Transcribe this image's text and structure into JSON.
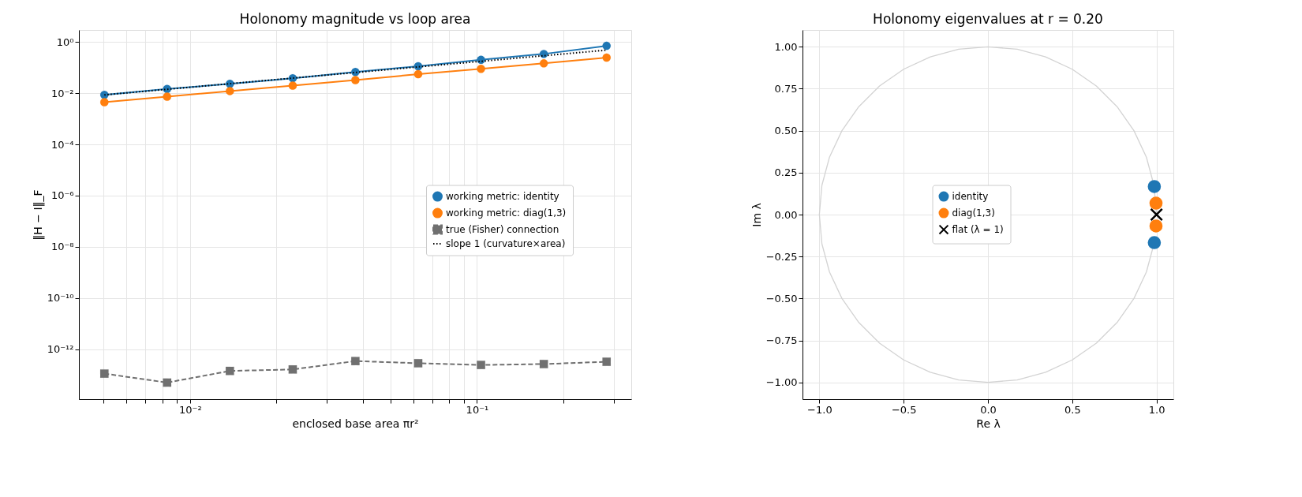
{
  "chart_data": [
    {
      "type": "line",
      "title": "Holonomy magnitude vs loop area",
      "xlabel": "enclosed base area  πr²",
      "ylabel": "‖H − I‖_F",
      "log": "xy",
      "grid": true,
      "legend": "right",
      "x": [
        0.00503,
        0.00832,
        0.01377,
        0.0228,
        0.0377,
        0.0624,
        0.1033,
        0.171,
        0.283
      ],
      "xlim": [
        0.0041,
        0.345
      ],
      "xticks": [
        {
          "value": 0.005,
          "label": null
        },
        {
          "value": 0.006,
          "label": null
        },
        {
          "value": 0.007,
          "label": null
        },
        {
          "value": 0.008,
          "label": null
        },
        {
          "value": 0.009,
          "label": null
        },
        {
          "value": 0.01,
          "label": "10⁻²"
        },
        {
          "value": 0.02,
          "label": null
        },
        {
          "value": 0.03,
          "label": null
        },
        {
          "value": 0.04,
          "label": null
        },
        {
          "value": 0.05,
          "label": null
        },
        {
          "value": 0.06,
          "label": null
        },
        {
          "value": 0.07,
          "label": null
        },
        {
          "value": 0.08,
          "label": null
        },
        {
          "value": 0.09,
          "label": null
        },
        {
          "value": 0.1,
          "label": "10⁻¹"
        },
        {
          "value": 0.2,
          "label": null
        },
        {
          "value": 0.3,
          "label": null
        }
      ],
      "ylim": [
        1.1e-14,
        3
      ],
      "yticks": [
        {
          "value": 1,
          "label": "10⁰"
        },
        {
          "value": 0.01,
          "label": "10⁻²"
        },
        {
          "value": 0.0001,
          "label": "10⁻⁴"
        },
        {
          "value": 1e-06,
          "label": "10⁻⁶"
        },
        {
          "value": 1e-08,
          "label": "10⁻⁸"
        },
        {
          "value": 1e-10,
          "label": "10⁻¹⁰"
        },
        {
          "value": 1e-12,
          "label": "10⁻¹²"
        }
      ],
      "series": [
        {
          "name": "working metric: identity",
          "color": "#1f77b4",
          "marker": "circle",
          "line_style": "solid",
          "values": [
            0.0087,
            0.0148,
            0.0235,
            0.039,
            0.068,
            0.115,
            0.204,
            0.347,
            0.72
          ]
        },
        {
          "name": "working metric: diag(1,3)",
          "color": "#ff7f0e",
          "marker": "circle",
          "line_style": "solid",
          "values": [
            0.0045,
            0.0074,
            0.0123,
            0.02,
            0.033,
            0.056,
            0.091,
            0.148,
            0.25
          ]
        },
        {
          "name": "true (Fisher) connection",
          "color": "#707070",
          "marker": "square",
          "line_style": "dashed",
          "values": [
            1.1e-13,
            4.9e-14,
            1.4e-13,
            1.6e-13,
            3.4e-13,
            2.8e-13,
            2.4e-13,
            2.6e-13,
            3.2e-13
          ]
        },
        {
          "name": "slope 1 (curvature×area)",
          "color": "#000000",
          "marker": "none",
          "line_style": "dotted",
          "x": [
            0.00503,
            0.283
          ],
          "values": [
            0.0087,
            0.49
          ]
        }
      ]
    },
    {
      "type": "scatter",
      "title": "Holonomy eigenvalues at r = 0.20",
      "xlabel": "Re λ",
      "ylabel": "Im λ",
      "grid": true,
      "legend": "center",
      "xlim": [
        -1.1,
        1.1
      ],
      "xticks": [
        {
          "value": -1,
          "label": "−1.0"
        },
        {
          "value": -0.5,
          "label": "−0.5"
        },
        {
          "value": 0,
          "label": "0.0"
        },
        {
          "value": 0.5,
          "label": "0.5"
        },
        {
          "value": 1,
          "label": "1.0"
        }
      ],
      "ylim": [
        -1.1,
        1.1
      ],
      "yticks": [
        {
          "value": -1,
          "label": "−1.00"
        },
        {
          "value": -0.75,
          "label": "−0.75"
        },
        {
          "value": -0.5,
          "label": "−0.50"
        },
        {
          "value": -0.25,
          "label": "−0.25"
        },
        {
          "value": 0,
          "label": "0.00"
        },
        {
          "value": 0.25,
          "label": "0.25"
        },
        {
          "value": 0.5,
          "label": "0.50"
        },
        {
          "value": 0.75,
          "label": "0.75"
        },
        {
          "value": 1,
          "label": "1.00"
        }
      ],
      "series": [
        {
          "type": "line",
          "color": "#d3d3d3",
          "marker": "none",
          "line_style": "solid",
          "x": [
            1.0,
            0.985,
            0.94,
            0.866,
            0.766,
            0.643,
            0.5,
            0.342,
            0.174,
            0.0,
            -0.174,
            -0.342,
            -0.5,
            -0.643,
            -0.766,
            -0.866,
            -0.94,
            -0.985,
            -1.0,
            -0.985,
            -0.94,
            -0.866,
            -0.766,
            -0.643,
            -0.5,
            -0.342,
            -0.174,
            0.0,
            0.174,
            0.342,
            0.5,
            0.643,
            0.766,
            0.866,
            0.94,
            0.985
          ],
          "values": [
            0.0,
            0.174,
            0.342,
            0.5,
            0.643,
            0.766,
            0.866,
            0.94,
            0.985,
            1.0,
            0.985,
            0.94,
            0.866,
            0.766,
            0.643,
            0.5,
            0.342,
            0.174,
            0.0,
            -0.174,
            -0.342,
            -0.5,
            -0.643,
            -0.766,
            -0.866,
            -0.94,
            -0.985,
            -1.0,
            -0.985,
            -0.94,
            -0.866,
            -0.766,
            -0.643,
            -0.5,
            -0.342,
            -0.174
          ]
        },
        {
          "name": "identity",
          "color": "#1f77b4",
          "marker": "circle",
          "x": [
            0.987,
            0.987
          ],
          "values": [
            0.167,
            -0.167
          ]
        },
        {
          "name": "diag(1,3)",
          "color": "#ff7f0e",
          "marker": "circle",
          "x": [
            0.997,
            0.997
          ],
          "values": [
            0.068,
            -0.068
          ]
        },
        {
          "name": "flat (λ = 1)",
          "color": "#000000",
          "marker": "cross",
          "x": [
            1.0
          ],
          "values": [
            0.0
          ]
        }
      ]
    }
  ]
}
